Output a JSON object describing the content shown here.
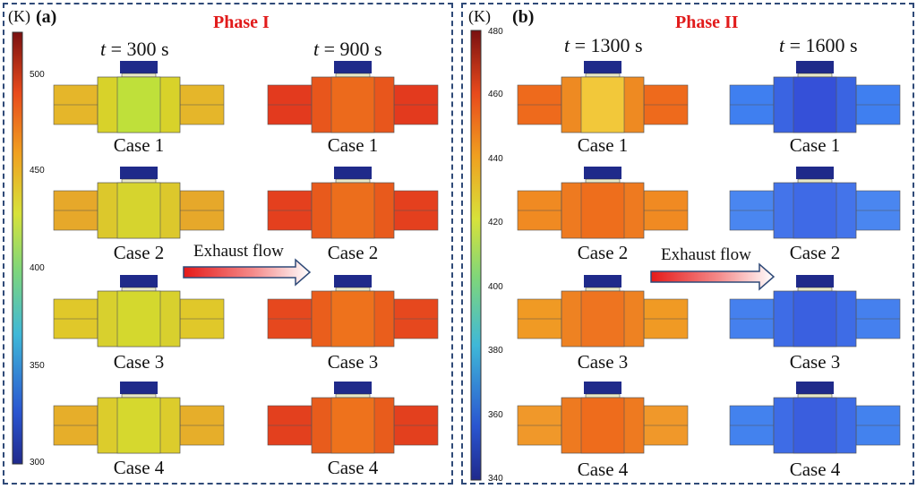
{
  "panels": [
    {
      "label": "(a)",
      "phase": "Phase I",
      "unit": "(K)",
      "ticks": [
        "500",
        "450",
        "400",
        "350",
        "300"
      ],
      "times": [
        {
          "t": "t",
          "rest": " = 300 s"
        },
        {
          "t": "t",
          "rest": " = 900 s"
        }
      ],
      "flow_label": "Exhaust flow"
    },
    {
      "label": "(b)",
      "phase": "Phase II",
      "unit": "(K)",
      "ticks": [
        "480",
        "460",
        "440",
        "420",
        "400",
        "380",
        "360",
        "340"
      ],
      "times": [
        {
          "t": "t",
          "rest": " = 1300 s"
        },
        {
          "t": "t",
          "rest": " = 1600 s"
        }
      ],
      "flow_label": "Exhaust flow"
    }
  ],
  "cases": [
    "Case 1",
    "Case 2",
    "Case 3",
    "Case 4"
  ],
  "colors": {
    "frame": "#2f4a78",
    "phase_text": "#e11b1b",
    "heatsink": "#1f2a8a"
  }
}
